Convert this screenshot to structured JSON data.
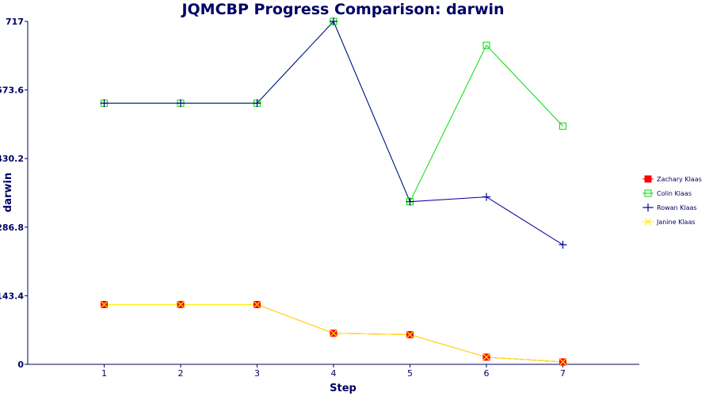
{
  "chart_data": {
    "type": "line",
    "title": "JQMCBP Progress Comparison: darwin",
    "xlabel": "Step",
    "ylabel": "darwin",
    "x": [
      1,
      2,
      3,
      4,
      5,
      6,
      7
    ],
    "xlim": [
      0,
      8
    ],
    "ylim": [
      0,
      717
    ],
    "yticks": [
      "0",
      "143.4",
      "286.8",
      "430.2",
      "573.6",
      "717"
    ],
    "grid": false,
    "legend_position": "right",
    "series": [
      {
        "name": "Zachary Klaas",
        "color": "#ff0000",
        "marker": "filled-square",
        "values": [
          125,
          125,
          125,
          65,
          62,
          15,
          5
        ]
      },
      {
        "name": "Colin Klaas",
        "color": "#00dd00",
        "marker": "open-square",
        "values": [
          546,
          546,
          546,
          717,
          340,
          667,
          498
        ]
      },
      {
        "name": "Rowan Klaas",
        "color": "#000099",
        "marker": "plus",
        "values": [
          546,
          546,
          546,
          717,
          340,
          350,
          250
        ]
      },
      {
        "name": "Janine Klaas",
        "color": "#ffee00",
        "marker": "x",
        "values": [
          125,
          125,
          125,
          65,
          62,
          15,
          5
        ]
      }
    ]
  }
}
